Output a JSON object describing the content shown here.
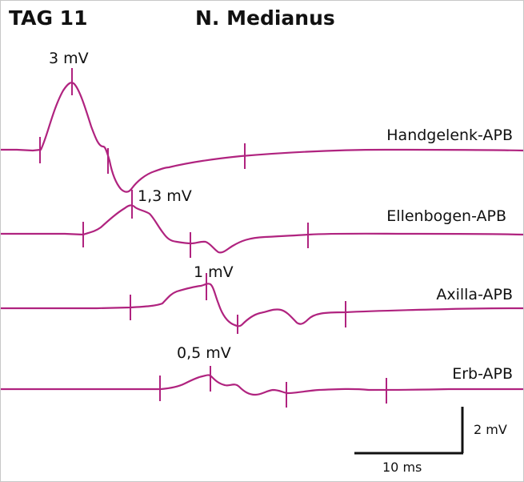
{
  "header": {
    "day": "TAG 11",
    "nerve": "N. Medianus"
  },
  "colors": {
    "trace": "#b0237f",
    "scale_bar": "#111111",
    "text": "#111111"
  },
  "traces": [
    {
      "label": "Handgelenk-APB",
      "amplitude": "3 mV"
    },
    {
      "label": "Ellenbogen-APB",
      "amplitude": "1,3 mV"
    },
    {
      "label": "Axilla-APB",
      "amplitude": "1 mV"
    },
    {
      "label": "Erb-APB",
      "amplitude": "0,5 mV"
    }
  ],
  "scale": {
    "vertical": "2 mV",
    "horizontal": "10 ms"
  }
}
